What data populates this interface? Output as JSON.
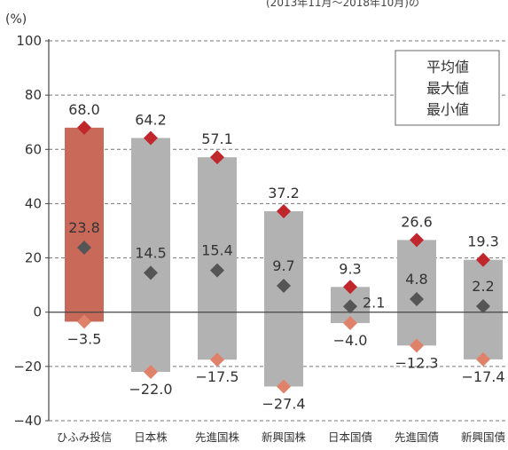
{
  "caption_partial": "(2013年11月～2018年10月)の",
  "chart_data": {
    "type": "range_bar_with_markers",
    "unit": "(%)",
    "ylim": [
      -40,
      100
    ],
    "yticks": [
      -40,
      -20,
      0,
      20,
      40,
      60,
      80,
      100
    ],
    "grid": "dashed-horizontal",
    "legend": {
      "position": "top-right",
      "items": [
        {
          "label": "平均値",
          "marker": "diamond",
          "color": "#555555"
        },
        {
          "label": "最大値",
          "marker": "diamond",
          "color": "#c0272d"
        },
        {
          "label": "最小値",
          "marker": "diamond",
          "color": "#e0826a"
        }
      ]
    },
    "categories": [
      "ひふみ投信",
      "日本株",
      "先進国株",
      "新興国株",
      "日本国債",
      "先進国債",
      "新興国債"
    ],
    "series": [
      {
        "name": "平均値",
        "values": [
          23.8,
          14.5,
          15.4,
          9.7,
          2.1,
          4.8,
          2.2
        ]
      },
      {
        "name": "最大値",
        "values": [
          68.0,
          64.2,
          57.1,
          37.2,
          9.3,
          26.6,
          19.3
        ]
      },
      {
        "name": "最小値",
        "values": [
          -3.5,
          -22.0,
          -17.5,
          -27.4,
          -4.0,
          -12.3,
          -17.4
        ]
      }
    ],
    "value_labels": {
      "max": [
        "68.0",
        "64.2",
        "57.1",
        "37.2",
        "9.3",
        "26.6",
        "19.3"
      ],
      "avg": [
        "23.8",
        "14.5",
        "15.4",
        "9.7",
        "2.1",
        "4.8",
        "2.2"
      ],
      "min": [
        "−3.5",
        "−22.0",
        "−17.5",
        "−27.4",
        "−4.0",
        "−12.3",
        "−17.4"
      ]
    },
    "bar_colors": [
      "#c8695a",
      "#b2b2b2",
      "#b2b2b2",
      "#b2b2b2",
      "#b2b2b2",
      "#b2b2b2",
      "#b2b2b2"
    ],
    "tick_labels": [
      "−40",
      "−20",
      "0",
      "20",
      "40",
      "60",
      "80",
      "100"
    ]
  }
}
